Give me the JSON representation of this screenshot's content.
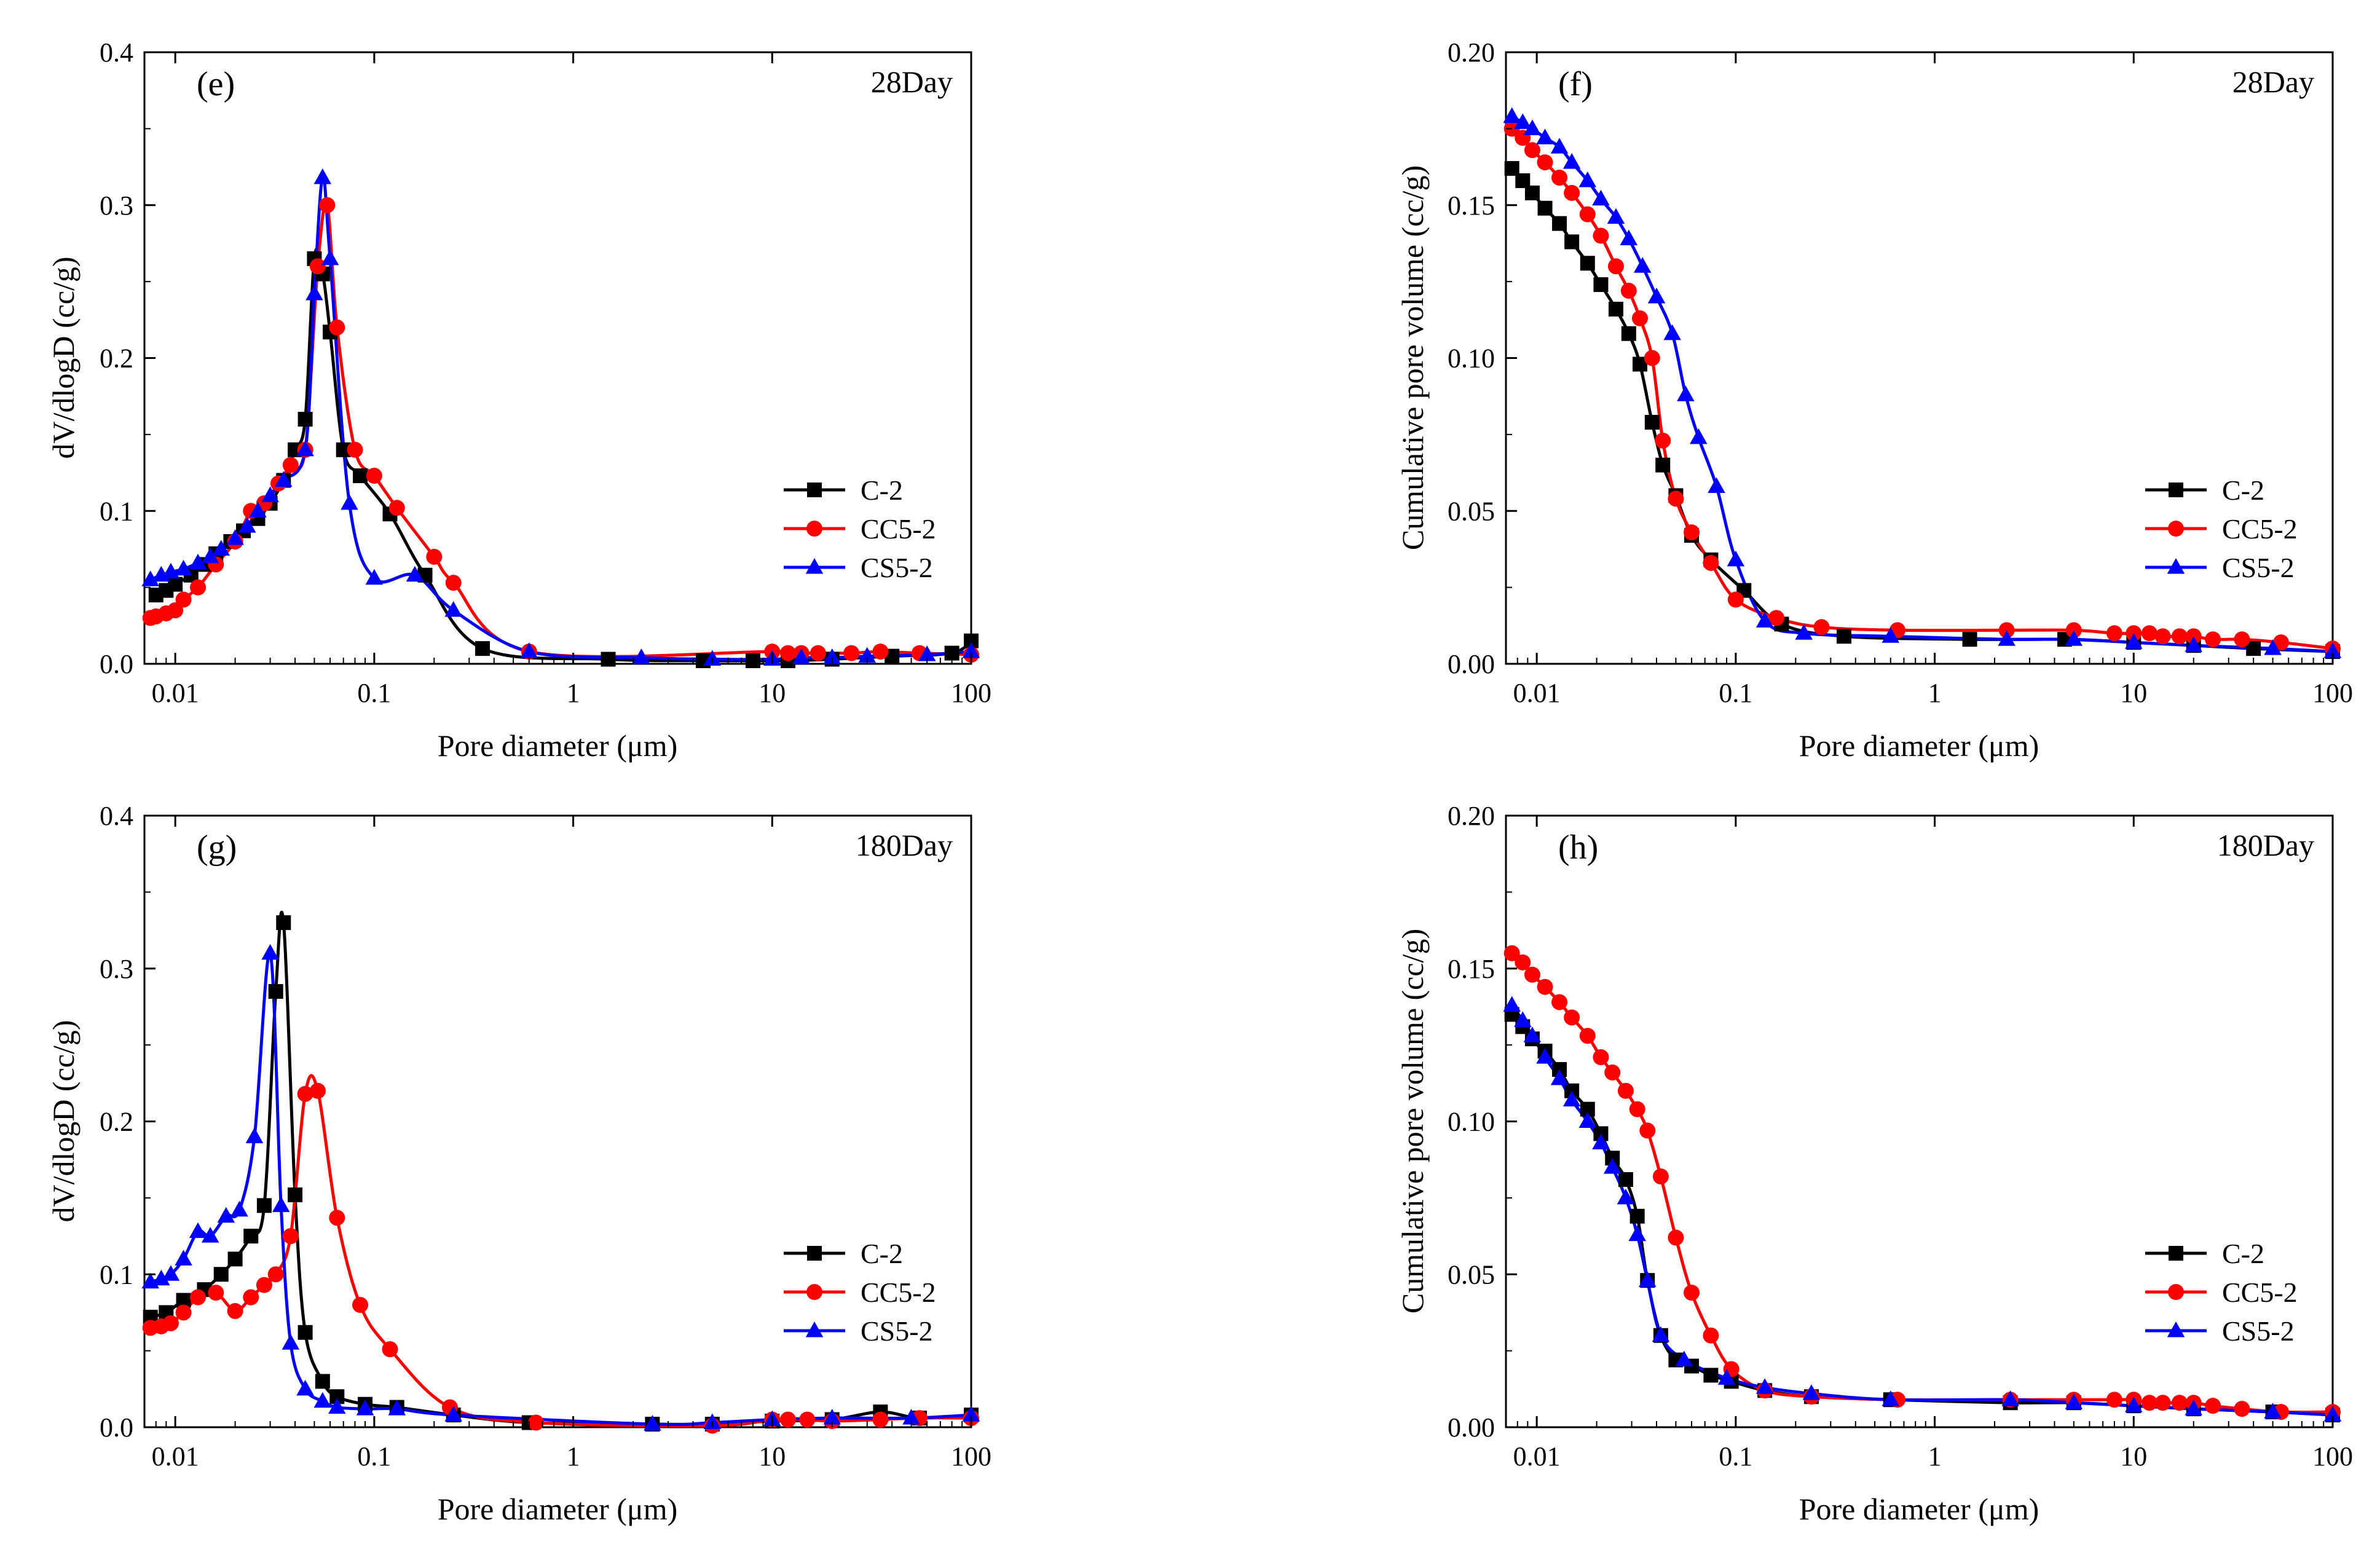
{
  "series_colors": {
    "C-2": "#000000",
    "CC5-2": "#ff0000",
    "CS5-2": "#0000ff"
  },
  "chart_data": [
    {
      "id": "e",
      "type": "line",
      "letter": "(e)",
      "day": "28Day",
      "xscale": "log",
      "xlim": [
        0.007,
        100
      ],
      "xticks": [
        0.01,
        0.1,
        1,
        10,
        100
      ],
      "xtick_labels": [
        "0.01",
        "0.1",
        "1",
        "10",
        "100"
      ],
      "ylim": [
        0,
        0.4
      ],
      "yticks": [
        0,
        0.1,
        0.2,
        0.3,
        0.4
      ],
      "ytick_labels": [
        "0.0",
        "0.1",
        "0.2",
        "0.3",
        "0.4"
      ],
      "xlabel": "Pore diameter (μm)",
      "ylabel": "dV/dlogD (cc/g)",
      "legend_position": "right-lower",
      "series": [
        {
          "name": "C-2",
          "marker": "square",
          "x": [
            0.008,
            0.009,
            0.01,
            0.012,
            0.014,
            0.016,
            0.019,
            0.022,
            0.026,
            0.03,
            0.035,
            0.04,
            0.045,
            0.05,
            0.055,
            0.06,
            0.07,
            0.085,
            0.12,
            0.18,
            0.35,
            1.5,
            4.5,
            8,
            12,
            20,
            40,
            80,
            100
          ],
          "y": [
            0.045,
            0.048,
            0.052,
            0.058,
            0.065,
            0.072,
            0.08,
            0.087,
            0.095,
            0.105,
            0.12,
            0.14,
            0.16,
            0.265,
            0.255,
            0.217,
            0.14,
            0.123,
            0.098,
            0.058,
            0.01,
            0.003,
            0.002,
            0.002,
            0.002,
            0.003,
            0.005,
            0.007,
            0.015
          ]
        },
        {
          "name": "CC5-2",
          "marker": "circle",
          "x": [
            0.0075,
            0.008,
            0.009,
            0.01,
            0.011,
            0.013,
            0.016,
            0.02,
            0.024,
            0.028,
            0.033,
            0.038,
            0.045,
            0.052,
            0.058,
            0.065,
            0.08,
            0.1,
            0.13,
            0.2,
            0.25,
            0.6,
            10,
            12,
            14,
            17,
            25,
            35,
            55,
            100
          ],
          "y": [
            0.03,
            0.031,
            0.033,
            0.035,
            0.042,
            0.05,
            0.065,
            0.08,
            0.1,
            0.105,
            0.118,
            0.13,
            0.14,
            0.26,
            0.3,
            0.22,
            0.14,
            0.123,
            0.102,
            0.07,
            0.053,
            0.008,
            0.008,
            0.007,
            0.007,
            0.007,
            0.007,
            0.008,
            0.007,
            0.006
          ]
        },
        {
          "name": "CS5-2",
          "marker": "triangle",
          "x": [
            0.0075,
            0.0085,
            0.0095,
            0.011,
            0.013,
            0.015,
            0.017,
            0.02,
            0.023,
            0.026,
            0.03,
            0.035,
            0.045,
            0.05,
            0.055,
            0.06,
            0.075,
            0.1,
            0.16,
            0.25,
            0.6,
            2.2,
            5,
            10,
            14,
            20,
            30,
            60,
            100
          ],
          "y": [
            0.055,
            0.058,
            0.06,
            0.062,
            0.066,
            0.07,
            0.075,
            0.082,
            0.09,
            0.1,
            0.11,
            0.12,
            0.14,
            0.242,
            0.318,
            0.265,
            0.105,
            0.056,
            0.058,
            0.035,
            0.008,
            0.004,
            0.003,
            0.003,
            0.004,
            0.004,
            0.005,
            0.006,
            0.008
          ]
        }
      ]
    },
    {
      "id": "f",
      "type": "line",
      "letter": "(f)",
      "day": "28Day",
      "xscale": "log",
      "xlim": [
        0.007,
        100
      ],
      "xticks": [
        0.01,
        0.1,
        1,
        10,
        100
      ],
      "xtick_labels": [
        "0.01",
        "0.1",
        "1",
        "10",
        "100"
      ],
      "ylim": [
        0,
        0.2
      ],
      "yticks": [
        0,
        0.05,
        0.1,
        0.15,
        0.2
      ],
      "ytick_labels": [
        "0.00",
        "0.05",
        "0.10",
        "0.15",
        "0.20"
      ],
      "xlabel": "Pore diameter (μm)",
      "ylabel": "Cumulative pore volume (cc/g)",
      "legend_position": "right-lower",
      "series": [
        {
          "name": "C-2",
          "marker": "square",
          "x": [
            0.0075,
            0.0085,
            0.0095,
            0.011,
            0.013,
            0.015,
            0.018,
            0.021,
            0.025,
            0.029,
            0.033,
            0.038,
            0.043,
            0.05,
            0.06,
            0.075,
            0.11,
            0.17,
            0.35,
            1.5,
            4.5,
            10,
            20,
            40,
            100
          ],
          "y": [
            0.162,
            0.158,
            0.154,
            0.149,
            0.144,
            0.138,
            0.131,
            0.124,
            0.116,
            0.108,
            0.098,
            0.079,
            0.065,
            0.055,
            0.042,
            0.034,
            0.024,
            0.013,
            0.009,
            0.008,
            0.008,
            0.007,
            0.006,
            0.005,
            0.004
          ]
        },
        {
          "name": "CC5-2",
          "marker": "circle",
          "x": [
            0.0075,
            0.0085,
            0.0095,
            0.011,
            0.013,
            0.015,
            0.018,
            0.021,
            0.025,
            0.029,
            0.033,
            0.038,
            0.043,
            0.05,
            0.06,
            0.075,
            0.1,
            0.16,
            0.27,
            0.65,
            2.3,
            5,
            8,
            10,
            12,
            14,
            17,
            20,
            25,
            35,
            55,
            100
          ],
          "y": [
            0.175,
            0.172,
            0.168,
            0.164,
            0.159,
            0.154,
            0.147,
            0.14,
            0.13,
            0.122,
            0.113,
            0.1,
            0.073,
            0.054,
            0.043,
            0.033,
            0.021,
            0.015,
            0.012,
            0.011,
            0.011,
            0.011,
            0.01,
            0.01,
            0.01,
            0.009,
            0.009,
            0.009,
            0.008,
            0.008,
            0.007,
            0.005
          ]
        },
        {
          "name": "CS5-2",
          "marker": "triangle",
          "x": [
            0.0075,
            0.0085,
            0.0095,
            0.011,
            0.013,
            0.015,
            0.018,
            0.021,
            0.025,
            0.029,
            0.034,
            0.04,
            0.048,
            0.056,
            0.065,
            0.08,
            0.1,
            0.14,
            0.22,
            0.6,
            2.3,
            5,
            10,
            20,
            50,
            100
          ],
          "y": [
            0.179,
            0.177,
            0.175,
            0.172,
            0.169,
            0.164,
            0.158,
            0.152,
            0.146,
            0.139,
            0.13,
            0.12,
            0.108,
            0.088,
            0.074,
            0.058,
            0.034,
            0.014,
            0.01,
            0.009,
            0.008,
            0.008,
            0.007,
            0.006,
            0.005,
            0.004
          ]
        }
      ]
    },
    {
      "id": "g",
      "type": "line",
      "letter": "(g)",
      "day": "180Day",
      "xscale": "log",
      "xlim": [
        0.007,
        100
      ],
      "xticks": [
        0.01,
        0.1,
        1,
        10,
        100
      ],
      "xtick_labels": [
        "0.01",
        "0.1",
        "1",
        "10",
        "100"
      ],
      "ylim": [
        0,
        0.4
      ],
      "yticks": [
        0,
        0.1,
        0.2,
        0.3,
        0.4
      ],
      "ytick_labels": [
        "0.0",
        "0.1",
        "0.2",
        "0.3",
        "0.4"
      ],
      "xlabel": "Pore diameter (μm)",
      "ylabel": "dV/dlogD (cc/g)",
      "legend_position": "right-lower",
      "series": [
        {
          "name": "C-2",
          "marker": "square",
          "x": [
            0.0075,
            0.009,
            0.011,
            0.014,
            0.017,
            0.02,
            0.024,
            0.028,
            0.032,
            0.035,
            0.04,
            0.045,
            0.055,
            0.065,
            0.09,
            0.13,
            0.25,
            0.6,
            2.5,
            5,
            10,
            20,
            35,
            55,
            100
          ],
          "y": [
            0.072,
            0.075,
            0.083,
            0.09,
            0.1,
            0.11,
            0.125,
            0.145,
            0.285,
            0.33,
            0.152,
            0.062,
            0.03,
            0.02,
            0.015,
            0.013,
            0.008,
            0.003,
            0.002,
            0.002,
            0.004,
            0.005,
            0.01,
            0.006,
            0.008
          ]
        },
        {
          "name": "CC5-2",
          "marker": "circle",
          "x": [
            0.0075,
            0.0085,
            0.0095,
            0.011,
            0.013,
            0.016,
            0.02,
            0.024,
            0.028,
            0.032,
            0.038,
            0.045,
            0.052,
            0.065,
            0.085,
            0.12,
            0.24,
            0.65,
            5,
            10,
            12,
            15,
            20,
            35,
            55,
            100
          ],
          "y": [
            0.065,
            0.066,
            0.068,
            0.075,
            0.085,
            0.088,
            0.076,
            0.085,
            0.093,
            0.1,
            0.125,
            0.218,
            0.22,
            0.137,
            0.08,
            0.051,
            0.013,
            0.003,
            0.001,
            0.005,
            0.005,
            0.005,
            0.004,
            0.005,
            0.006,
            0.006
          ]
        },
        {
          "name": "CS5-2",
          "marker": "triangle",
          "x": [
            0.0075,
            0.0085,
            0.0095,
            0.011,
            0.013,
            0.015,
            0.018,
            0.021,
            0.025,
            0.03,
            0.034,
            0.038,
            0.045,
            0.055,
            0.065,
            0.09,
            0.13,
            0.25,
            2.5,
            5,
            10,
            20,
            50,
            100
          ],
          "y": [
            0.095,
            0.097,
            0.1,
            0.11,
            0.128,
            0.125,
            0.138,
            0.142,
            0.19,
            0.31,
            0.145,
            0.055,
            0.025,
            0.017,
            0.013,
            0.012,
            0.012,
            0.008,
            0.002,
            0.003,
            0.005,
            0.006,
            0.006,
            0.008
          ]
        }
      ]
    },
    {
      "id": "h",
      "type": "line",
      "letter": "(h)",
      "day": "180Day",
      "xscale": "log",
      "xlim": [
        0.007,
        100
      ],
      "xticks": [
        0.01,
        0.1,
        1,
        10,
        100
      ],
      "xtick_labels": [
        "0.01",
        "0.1",
        "1",
        "10",
        "100"
      ],
      "ylim": [
        0,
        0.2
      ],
      "yticks": [
        0,
        0.05,
        0.1,
        0.15,
        0.2
      ],
      "ytick_labels": [
        "0.00",
        "0.05",
        "0.10",
        "0.15",
        "0.20"
      ],
      "xlabel": "Pore diameter (μm)",
      "ylabel": "Cumulative pore volume (cc/g)",
      "legend_position": "right-lower",
      "series": [
        {
          "name": "C-2",
          "marker": "square",
          "x": [
            0.0075,
            0.0085,
            0.0095,
            0.011,
            0.013,
            0.015,
            0.018,
            0.021,
            0.024,
            0.028,
            0.032,
            0.036,
            0.042,
            0.05,
            0.06,
            0.075,
            0.095,
            0.14,
            0.24,
            0.6,
            2.4,
            5,
            10,
            20,
            50,
            100
          ],
          "y": [
            0.135,
            0.131,
            0.127,
            0.123,
            0.117,
            0.11,
            0.104,
            0.096,
            0.088,
            0.081,
            0.069,
            0.048,
            0.03,
            0.022,
            0.02,
            0.017,
            0.015,
            0.012,
            0.01,
            0.009,
            0.008,
            0.008,
            0.007,
            0.006,
            0.005,
            0.004
          ]
        },
        {
          "name": "CC5-2",
          "marker": "circle",
          "x": [
            0.0075,
            0.0085,
            0.0095,
            0.011,
            0.013,
            0.015,
            0.018,
            0.021,
            0.024,
            0.028,
            0.032,
            0.036,
            0.042,
            0.05,
            0.06,
            0.075,
            0.095,
            0.14,
            0.24,
            0.65,
            2.4,
            5,
            8,
            10,
            12,
            14,
            17,
            20,
            25,
            35,
            55,
            100
          ],
          "y": [
            0.155,
            0.152,
            0.148,
            0.144,
            0.139,
            0.134,
            0.128,
            0.121,
            0.116,
            0.11,
            0.104,
            0.097,
            0.082,
            0.062,
            0.044,
            0.03,
            0.019,
            0.012,
            0.01,
            0.009,
            0.009,
            0.009,
            0.009,
            0.009,
            0.008,
            0.008,
            0.008,
            0.008,
            0.007,
            0.006,
            0.005,
            0.005
          ]
        },
        {
          "name": "CS5-2",
          "marker": "triangle",
          "x": [
            0.0075,
            0.0085,
            0.0095,
            0.011,
            0.013,
            0.015,
            0.018,
            0.021,
            0.024,
            0.028,
            0.032,
            0.036,
            0.042,
            0.055,
            0.09,
            0.14,
            0.24,
            0.6,
            2.4,
            5,
            10,
            20,
            50,
            100
          ],
          "y": [
            0.138,
            0.133,
            0.128,
            0.121,
            0.114,
            0.107,
            0.1,
            0.093,
            0.085,
            0.075,
            0.063,
            0.048,
            0.03,
            0.022,
            0.016,
            0.013,
            0.011,
            0.009,
            0.009,
            0.008,
            0.007,
            0.006,
            0.005,
            0.004
          ]
        }
      ]
    }
  ]
}
